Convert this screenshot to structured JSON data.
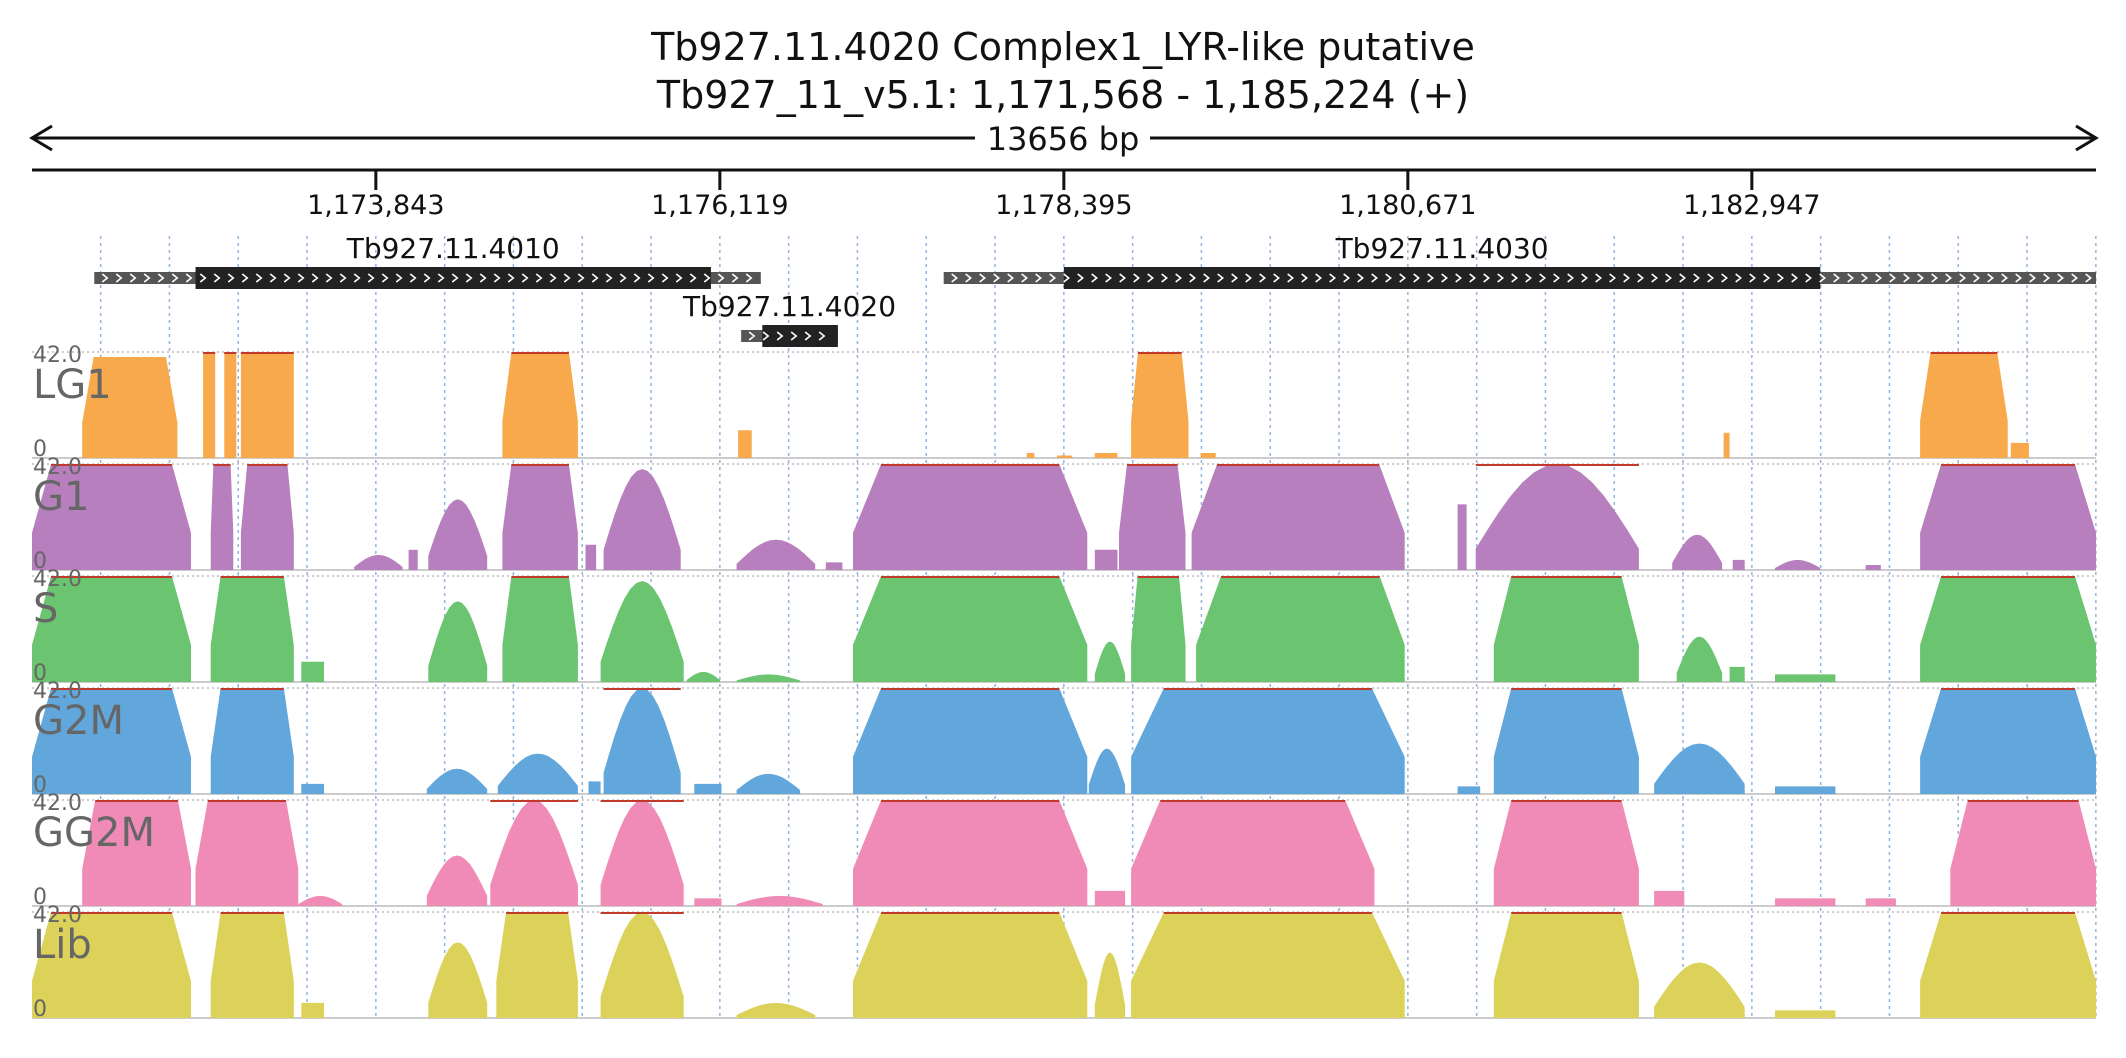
{
  "title_line1": "Tb927.11.4020  Complex1_LYR-like  putative",
  "title_line2": "Tb927_11_v5.1: 1,171,568 - 1,185,224 (+)",
  "span_label": "13656 bp",
  "colors": {
    "LG1": "#f7a94b",
    "G1": "#b77fbd",
    "S": "#6bc470",
    "G2M": "#62a7dc",
    "GG2M": "#f08bb7",
    "Lib": "#dcd25a",
    "cap_line": "#c0392b",
    "grid": "#8fb4e0",
    "gene_body": "#222222",
    "gene_utr": "#555555"
  },
  "chart_data": {
    "type": "area",
    "chromosome": "Tb927_11_v5.1",
    "region": [
      1171568,
      1185224
    ],
    "strand": "+",
    "x_ticks": [
      1173843,
      1176119,
      1178395,
      1180671,
      1182947
    ],
    "x_tick_labels": [
      "1,173,843",
      "1,176,119",
      "1,178,395",
      "1,180,671",
      "1,182,947"
    ],
    "genes": [
      {
        "name": "Tb927.11.4010",
        "start": 1171980,
        "end": 1176390,
        "cds_start": 1172650,
        "cds_end": 1176060,
        "row": 1
      },
      {
        "name": "Tb927.11.4020",
        "start": 1176260,
        "end": 1176900,
        "cds_start": 1176400,
        "cds_end": 1176900,
        "row": 2
      },
      {
        "name": "Tb927.11.4030",
        "start": 1177600,
        "end": 1185224,
        "cds_start": 1178395,
        "cds_end": 1183400,
        "row": 1
      }
    ],
    "ylim": [
      0,
      42.0
    ],
    "y_max_label": "42.0",
    "y_min_label": "0",
    "tracks": [
      {
        "name": "LG1",
        "segments": [
          [
            1171900,
            1172530,
            40,
            "plateau"
          ],
          [
            1172700,
            1172780,
            42,
            "flat"
          ],
          [
            1172840,
            1172920,
            42,
            "flat"
          ],
          [
            1172950,
            1173300,
            42,
            "flat"
          ],
          [
            1174680,
            1175180,
            42,
            "plateau"
          ],
          [
            1176240,
            1176330,
            11,
            "flat"
          ],
          [
            1178150,
            1178200,
            2,
            "flat"
          ],
          [
            1178350,
            1178450,
            1,
            "flat"
          ],
          [
            1178600,
            1178750,
            2,
            "flat"
          ],
          [
            1178840,
            1179220,
            42,
            "plateau"
          ],
          [
            1179300,
            1179400,
            2,
            "flat"
          ],
          [
            1182760,
            1182800,
            10,
            "flat"
          ],
          [
            1184060,
            1184640,
            42,
            "plateau"
          ],
          [
            1184660,
            1184780,
            6,
            "flat"
          ]
        ]
      },
      {
        "name": "G1",
        "segments": [
          [
            1171568,
            1172620,
            42,
            "plateau"
          ],
          [
            1172750,
            1172900,
            42,
            "plateau"
          ],
          [
            1172950,
            1173300,
            42,
            "plateau"
          ],
          [
            1173700,
            1174020,
            6,
            "hump"
          ],
          [
            1174060,
            1174120,
            8,
            "flat"
          ],
          [
            1174190,
            1174580,
            28,
            "hump"
          ],
          [
            1174680,
            1175180,
            42,
            "plateau"
          ],
          [
            1175230,
            1175300,
            10,
            "flat"
          ],
          [
            1175350,
            1175860,
            40,
            "hump"
          ],
          [
            1176230,
            1176750,
            12,
            "hump"
          ],
          [
            1176820,
            1176930,
            3,
            "flat"
          ],
          [
            1177000,
            1178550,
            42,
            "plateau"
          ],
          [
            1178600,
            1178750,
            8,
            "flat"
          ],
          [
            1178760,
            1179200,
            42,
            "plateau"
          ],
          [
            1179240,
            1180650,
            42,
            "plateau"
          ],
          [
            1181000,
            1181060,
            26,
            "flat"
          ],
          [
            1181120,
            1182200,
            42,
            "hump"
          ],
          [
            1182420,
            1182750,
            14,
            "hump"
          ],
          [
            1182820,
            1182900,
            4,
            "flat"
          ],
          [
            1183100,
            1183400,
            4,
            "hump"
          ],
          [
            1183700,
            1183800,
            2,
            "flat"
          ],
          [
            1184060,
            1185224,
            42,
            "plateau"
          ]
        ]
      },
      {
        "name": "S",
        "segments": [
          [
            1171568,
            1172620,
            42,
            "plateau"
          ],
          [
            1172750,
            1173300,
            42,
            "plateau"
          ],
          [
            1173350,
            1173500,
            8,
            "flat"
          ],
          [
            1174190,
            1174580,
            32,
            "hump"
          ],
          [
            1174680,
            1175180,
            42,
            "plateau"
          ],
          [
            1175330,
            1175880,
            40,
            "hump"
          ],
          [
            1175900,
            1176120,
            4,
            "hump"
          ],
          [
            1176230,
            1176650,
            3,
            "hump"
          ],
          [
            1177000,
            1178550,
            42,
            "plateau"
          ],
          [
            1178600,
            1178800,
            16,
            "hump"
          ],
          [
            1178840,
            1179200,
            42,
            "plateau"
          ],
          [
            1179270,
            1180650,
            42,
            "plateau"
          ],
          [
            1181240,
            1182200,
            42,
            "plateau"
          ],
          [
            1182450,
            1182750,
            18,
            "hump"
          ],
          [
            1182800,
            1182900,
            6,
            "flat"
          ],
          [
            1183100,
            1183500,
            3,
            "flat"
          ],
          [
            1184060,
            1185224,
            42,
            "plateau"
          ]
        ]
      },
      {
        "name": "G2M",
        "segments": [
          [
            1171568,
            1172620,
            42,
            "plateau"
          ],
          [
            1172750,
            1173300,
            42,
            "plateau"
          ],
          [
            1173350,
            1173500,
            4,
            "flat"
          ],
          [
            1174180,
            1174580,
            10,
            "hump"
          ],
          [
            1174650,
            1175180,
            16,
            "hump"
          ],
          [
            1175250,
            1175330,
            5,
            "flat"
          ],
          [
            1175350,
            1175860,
            42,
            "hump"
          ],
          [
            1175950,
            1176130,
            4,
            "flat"
          ],
          [
            1176230,
            1176650,
            8,
            "hump"
          ],
          [
            1177000,
            1178550,
            42,
            "plateau"
          ],
          [
            1178560,
            1178800,
            18,
            "hump"
          ],
          [
            1178840,
            1180650,
            42,
            "plateau"
          ],
          [
            1181000,
            1181150,
            3,
            "flat"
          ],
          [
            1181240,
            1182200,
            42,
            "plateau"
          ],
          [
            1182300,
            1182900,
            20,
            "hump"
          ],
          [
            1183100,
            1183500,
            3,
            "flat"
          ],
          [
            1184060,
            1185224,
            42,
            "plateau"
          ]
        ]
      },
      {
        "name": "GG2M",
        "segments": [
          [
            1171900,
            1172620,
            42,
            "plateau"
          ],
          [
            1172650,
            1173330,
            42,
            "plateau"
          ],
          [
            1173330,
            1173620,
            4,
            "hump"
          ],
          [
            1174180,
            1174580,
            20,
            "hump"
          ],
          [
            1174600,
            1175180,
            42,
            "hump"
          ],
          [
            1175330,
            1175880,
            42,
            "hump"
          ],
          [
            1175950,
            1176130,
            3,
            "flat"
          ],
          [
            1176230,
            1176800,
            4,
            "hump"
          ],
          [
            1177000,
            1178550,
            42,
            "plateau"
          ],
          [
            1178600,
            1178800,
            6,
            "flat"
          ],
          [
            1178840,
            1180450,
            42,
            "plateau"
          ],
          [
            1181240,
            1182200,
            42,
            "plateau"
          ],
          [
            1182300,
            1182500,
            6,
            "flat"
          ],
          [
            1183100,
            1183500,
            3,
            "flat"
          ],
          [
            1183700,
            1183900,
            3,
            "flat"
          ],
          [
            1184260,
            1185224,
            42,
            "plateau"
          ]
        ]
      },
      {
        "name": "Lib",
        "segments": [
          [
            1171568,
            1172620,
            42,
            "plateau"
          ],
          [
            1172750,
            1173300,
            42,
            "plateau"
          ],
          [
            1173350,
            1173500,
            6,
            "flat"
          ],
          [
            1174190,
            1174580,
            30,
            "hump"
          ],
          [
            1174640,
            1175180,
            42,
            "plateau"
          ],
          [
            1175330,
            1175880,
            42,
            "hump"
          ],
          [
            1176230,
            1176750,
            6,
            "hump"
          ],
          [
            1177000,
            1178550,
            42,
            "plateau"
          ],
          [
            1178600,
            1178800,
            26,
            "hump"
          ],
          [
            1178840,
            1180650,
            42,
            "plateau"
          ],
          [
            1181240,
            1182200,
            42,
            "plateau"
          ],
          [
            1182300,
            1182900,
            22,
            "hump"
          ],
          [
            1183100,
            1183500,
            3,
            "flat"
          ],
          [
            1184060,
            1185224,
            42,
            "plateau"
          ]
        ]
      }
    ]
  }
}
